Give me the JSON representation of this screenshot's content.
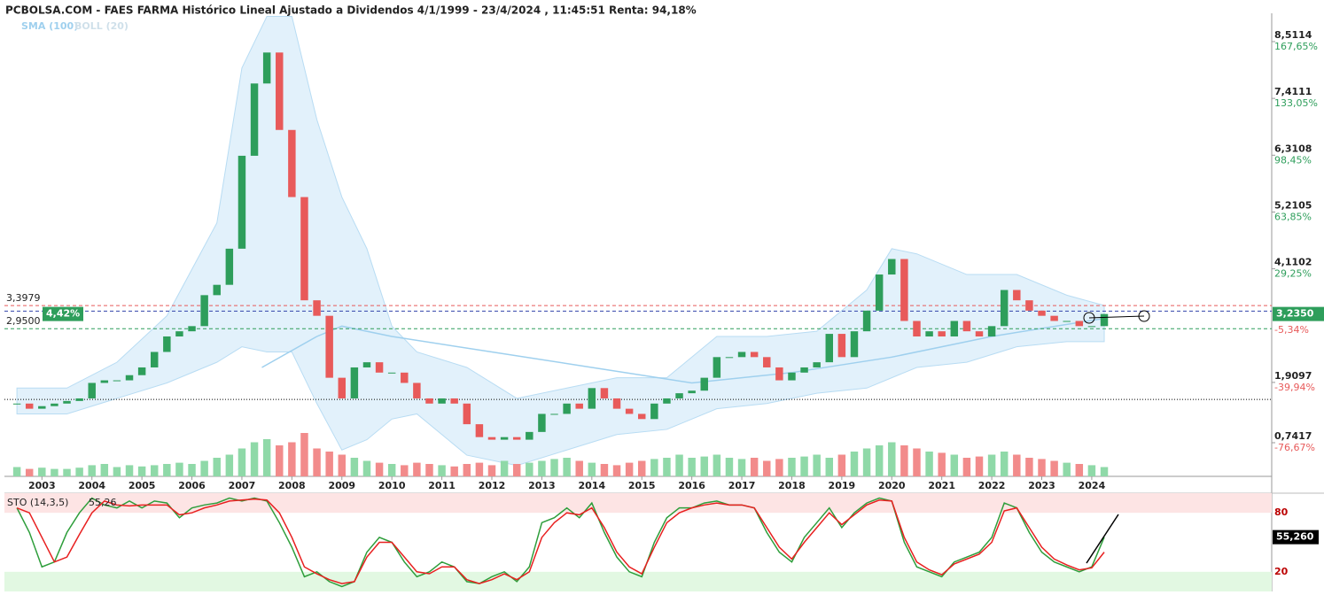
{
  "chart_data": [
    {
      "type": "candlestick",
      "title": "PCBOLSA.COM - FAES FARMA Histórico Lineal Ajustado a Dividendos 4/1/1999 - 23/4/2024 , 11:45:51 Renta: 94,18%",
      "x": [
        2002.5,
        2002.75,
        2003,
        2003.25,
        2003.5,
        2003.75,
        2004,
        2004.25,
        2004.5,
        2004.75,
        2005,
        2005.25,
        2005.5,
        2005.75,
        2006,
        2006.25,
        2006.5,
        2006.75,
        2007,
        2007.25,
        2007.5,
        2007.75,
        2008,
        2008.25,
        2008.5,
        2008.75,
        2009,
        2009.25,
        2009.5,
        2009.75,
        2010,
        2010.25,
        2010.5,
        2010.75,
        2011,
        2011.25,
        2011.5,
        2011.75,
        2012,
        2012.25,
        2012.5,
        2012.75,
        2013,
        2013.25,
        2013.5,
        2013.75,
        2014,
        2014.25,
        2014.5,
        2014.75,
        2015,
        2015.25,
        2015.5,
        2015.75,
        2016,
        2016.25,
        2016.5,
        2016.75,
        2017,
        2017.25,
        2017.5,
        2017.75,
        2018,
        2018.25,
        2018.5,
        2018.75,
        2019,
        2019.25,
        2019.5,
        2019.75,
        2020,
        2020.25,
        2020.5,
        2020.75,
        2021,
        2021.25,
        2021.5,
        2021.75,
        2022,
        2022.25,
        2022.5,
        2022.75,
        2023,
        2023.25,
        2023.5,
        2023.75,
        2024,
        2024.25
      ],
      "series": [
        {
          "name": "close",
          "colors": [
            "#2e9e5b",
            "#e85a5a"
          ],
          "values": [
            1.5,
            1.4,
            1.45,
            1.5,
            1.55,
            1.6,
            1.9,
            1.95,
            1.95,
            2.05,
            2.2,
            2.5,
            2.8,
            2.9,
            3.0,
            3.6,
            3.8,
            4.5,
            6.3,
            7.7,
            8.3,
            6.8,
            5.5,
            3.5,
            3.2,
            2.0,
            1.6,
            2.2,
            2.3,
            2.1,
            2.1,
            1.9,
            1.6,
            1.5,
            1.6,
            1.5,
            1.1,
            0.85,
            0.8,
            0.85,
            0.8,
            0.95,
            1.3,
            1.3,
            1.5,
            1.4,
            1.8,
            1.6,
            1.4,
            1.3,
            1.2,
            1.5,
            1.6,
            1.7,
            1.75,
            2.0,
            2.4,
            2.4,
            2.5,
            2.4,
            2.2,
            1.95,
            2.1,
            2.2,
            2.3,
            2.85,
            2.4,
            2.9,
            3.3,
            4.0,
            4.3,
            3.1,
            2.8,
            2.9,
            2.8,
            3.1,
            2.9,
            2.8,
            3.0,
            3.7,
            3.5,
            3.3,
            3.2,
            3.1,
            3.1,
            3.0,
            3.0,
            3.235
          ]
        },
        {
          "name": "volume",
          "colors": [
            "#8fd9a8",
            "#f28b8b"
          ],
          "values": [
            15,
            12,
            14,
            12,
            12,
            14,
            18,
            20,
            15,
            18,
            16,
            18,
            20,
            22,
            20,
            25,
            30,
            35,
            45,
            55,
            60,
            50,
            55,
            70,
            45,
            40,
            35,
            30,
            25,
            22,
            20,
            18,
            22,
            20,
            18,
            16,
            20,
            22,
            18,
            25,
            20,
            22,
            25,
            28,
            30,
            25,
            22,
            20,
            18,
            22,
            25,
            28,
            30,
            35,
            30,
            32,
            35,
            30,
            28,
            30,
            25,
            28,
            30,
            32,
            35,
            30,
            35,
            40,
            45,
            50,
            55,
            50,
            45,
            40,
            38,
            35,
            30,
            32,
            35,
            40,
            35,
            30,
            28,
            25,
            22,
            20,
            18,
            15
          ],
          "vlim": [
            0,
            100
          ]
        }
      ],
      "sma": {
        "name": "SMA (100)",
        "color": "#9fd0ee",
        "x": [
          2007.4,
          2008.5,
          2009,
          2010,
          2012,
          2014,
          2016,
          2018,
          2020,
          2022,
          2024.25
        ],
        "values": [
          2.2,
          2.8,
          3.0,
          2.8,
          2.5,
          2.2,
          1.9,
          2.1,
          2.4,
          2.8,
          3.15
        ]
      },
      "bollinger": {
        "name": "BOLL (20)",
        "color": "#cfe8f8",
        "x": [
          2002.5,
          2003.5,
          2004.5,
          2005.5,
          2006.5,
          2007,
          2007.5,
          2008,
          2008.5,
          2009,
          2009.5,
          2010,
          2010.5,
          2011.5,
          2012.5,
          2013.5,
          2014.5,
          2015.5,
          2016.5,
          2017.5,
          2018.5,
          2019.5,
          2020,
          2020.5,
          2021.5,
          2022.5,
          2023.5,
          2024.25
        ],
        "upper": [
          1.8,
          1.8,
          2.3,
          3.2,
          5.0,
          8.0,
          9.0,
          9.0,
          7.0,
          5.5,
          4.5,
          3.0,
          2.5,
          2.2,
          1.6,
          1.8,
          2.0,
          2.0,
          2.8,
          2.8,
          2.9,
          3.7,
          4.5,
          4.4,
          4.0,
          4.0,
          3.6,
          3.4
        ],
        "lower": [
          1.3,
          1.3,
          1.6,
          1.9,
          2.3,
          2.6,
          2.5,
          2.5,
          1.5,
          0.6,
          0.8,
          1.2,
          1.3,
          0.5,
          0.3,
          0.6,
          0.9,
          1.0,
          1.4,
          1.5,
          1.7,
          1.8,
          2.0,
          2.2,
          2.3,
          2.6,
          2.7,
          2.7
        ]
      },
      "xlim": [
        2002.25,
        2027.6
      ],
      "xticks": [
        2003,
        2004,
        2005,
        2006,
        2007,
        2008,
        2009,
        2010,
        2011,
        2012,
        2013,
        2014,
        2015,
        2016,
        2017,
        2018,
        2019,
        2020,
        2021,
        2022,
        2023,
        2024
      ],
      "ylim": [
        0.09,
        9.06
      ],
      "yticks": [
        {
          "value": 8.5114,
          "label": "8,5114"
        },
        {
          "value": 7.4111,
          "label": "7,4111"
        },
        {
          "value": 6.3108,
          "label": "6,3108"
        },
        {
          "value": 5.2105,
          "label": "5,2105"
        },
        {
          "value": 4.1102,
          "label": "4,1102"
        },
        {
          "value": 1.9097,
          "label": "1,9097"
        },
        {
          "value": 0.7417,
          "label": "0,7417"
        }
      ],
      "ytick_pct_labels": [
        "167,65%",
        "133,05%",
        "98,45%",
        "63,85%",
        "29,25%",
        "-39,94%",
        "-76,67%"
      ],
      "levels": [
        {
          "value": 3.3979,
          "label": "3,3979",
          "color": "#e85a5a"
        },
        {
          "value": 2.95,
          "label": "2,9500",
          "color": "#2e9e5b"
        }
      ],
      "ref_line": {
        "value": 3.29,
        "color": "#3344aa"
      },
      "support_line": 1.58,
      "last": {
        "value": 3.235,
        "label": "3,2350",
        "change": "4,42%",
        "low_label": "-5,34%",
        "low_value": 3.06
      }
    },
    {
      "type": "line",
      "title": "STO (14,3,5)",
      "current": 55.26,
      "current_label": "55,26",
      "box_label": "55,260",
      "ylim": [
        0,
        100
      ],
      "yticks": [
        20,
        80
      ],
      "series": [
        {
          "name": "K",
          "color": "#2e9e3b",
          "values": [
            85,
            60,
            25,
            30,
            60,
            80,
            95,
            88,
            85,
            92,
            85,
            92,
            90,
            75,
            85,
            88,
            90,
            95,
            92,
            95,
            92,
            70,
            45,
            15,
            20,
            10,
            5,
            10,
            40,
            55,
            50,
            30,
            15,
            20,
            30,
            25,
            10,
            8,
            15,
            20,
            10,
            25,
            70,
            75,
            85,
            75,
            90,
            60,
            35,
            20,
            15,
            50,
            75,
            85,
            85,
            90,
            92,
            88,
            88,
            85,
            60,
            40,
            30,
            55,
            70,
            85,
            65,
            80,
            90,
            95,
            92,
            50,
            25,
            20,
            15,
            30,
            35,
            40,
            55,
            90,
            85,
            60,
            40,
            30,
            25,
            20,
            25,
            55.26
          ]
        },
        {
          "name": "D",
          "color": "#e82020",
          "values": [
            85,
            80,
            55,
            30,
            35,
            58,
            80,
            92,
            88,
            87,
            88,
            88,
            88,
            78,
            80,
            85,
            88,
            92,
            93,
            94,
            93,
            80,
            55,
            25,
            18,
            12,
            8,
            10,
            35,
            50,
            50,
            35,
            20,
            18,
            25,
            25,
            12,
            8,
            12,
            18,
            12,
            20,
            55,
            70,
            80,
            78,
            85,
            65,
            40,
            25,
            18,
            45,
            70,
            80,
            85,
            88,
            90,
            88,
            88,
            85,
            65,
            45,
            33,
            50,
            65,
            80,
            68,
            78,
            88,
            93,
            92,
            55,
            30,
            22,
            17,
            28,
            33,
            38,
            50,
            82,
            85,
            65,
            45,
            33,
            27,
            22,
            24,
            40
          ]
        }
      ]
    }
  ]
}
